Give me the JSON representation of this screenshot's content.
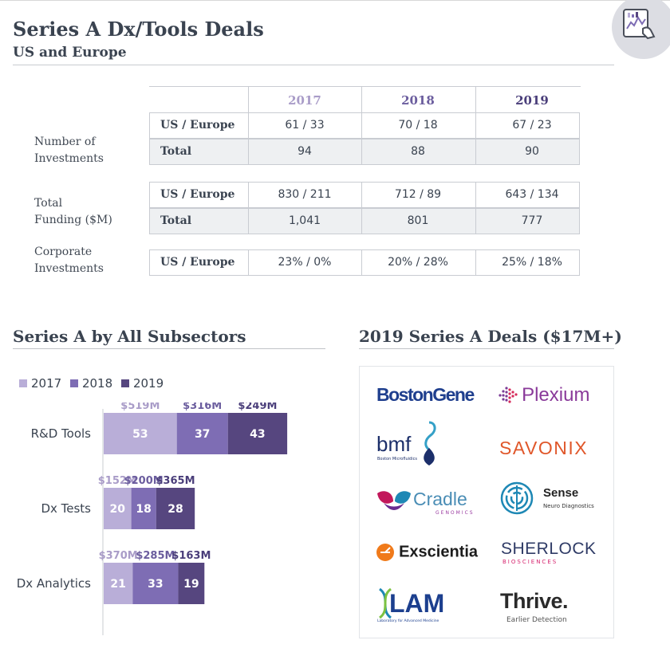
{
  "header": {
    "title": "Series A Dx/Tools Deals",
    "subtitle": "US and Europe"
  },
  "table": {
    "years": [
      "2017",
      "2018",
      "2019"
    ],
    "year_colors": [
      "#a99cc8",
      "#6b5d9e",
      "#4a3e7a"
    ],
    "groups": [
      {
        "label": [
          "Number of",
          "Investments"
        ],
        "rows": [
          {
            "header": "US / Europe",
            "values": [
              "61 / 33",
              "70 / 18",
              "67 / 23"
            ]
          },
          {
            "header": "Total",
            "values": [
              "94",
              "88",
              "90"
            ]
          }
        ]
      },
      {
        "label": [
          "Total",
          "Funding ($M)"
        ],
        "rows": [
          {
            "header": "US / Europe",
            "values": [
              "830 / 211",
              "712 / 89",
              "643 / 134"
            ]
          },
          {
            "header": "Total",
            "values": [
              "1,041",
              "801",
              "777"
            ]
          }
        ]
      },
      {
        "label": [
          "Corporate",
          "Investments"
        ],
        "rows": [
          {
            "header": "US / Europe",
            "values": [
              "23% / 0%",
              "20% / 28%",
              "25% / 18%"
            ]
          }
        ]
      }
    ]
  },
  "subsectors": {
    "title": "Series A by All Subsectors"
  },
  "deals": {
    "title": "2019 Series A Deals ($17M+)",
    "logos": [
      "BostonGene",
      "Plexium",
      "bmf",
      "Boston Microfluidics",
      "SAVONIX",
      "Cradle",
      "GENOMICS",
      "Sense",
      "Neuro Diagnostics",
      "Exscientia",
      "SHERLOCK",
      "BIOSCIENCES",
      "LAM",
      "Laboratory for Advanced Medicine",
      "Thrive.",
      "Earlier Detection"
    ]
  },
  "chart_data": {
    "type": "bar",
    "orientation": "horizontal",
    "stacked": true,
    "categories": [
      "R&D Tools",
      "Dx Tests",
      "Dx Analytics"
    ],
    "series": [
      {
        "name": "2017",
        "color": "#b9aed8",
        "values": [
          53,
          20,
          21
        ],
        "funding": [
          "$519M",
          "$152M",
          "$370M"
        ]
      },
      {
        "name": "2018",
        "color": "#7e6db4",
        "values": [
          37,
          18,
          33
        ],
        "funding": [
          "$316M",
          "$200M",
          "$285M"
        ]
      },
      {
        "name": "2019",
        "color": "#56467f",
        "values": [
          43,
          28,
          19
        ],
        "funding": [
          "$249M",
          "$365M",
          "$163M"
        ]
      }
    ],
    "legend": "top-left",
    "grid": false
  }
}
